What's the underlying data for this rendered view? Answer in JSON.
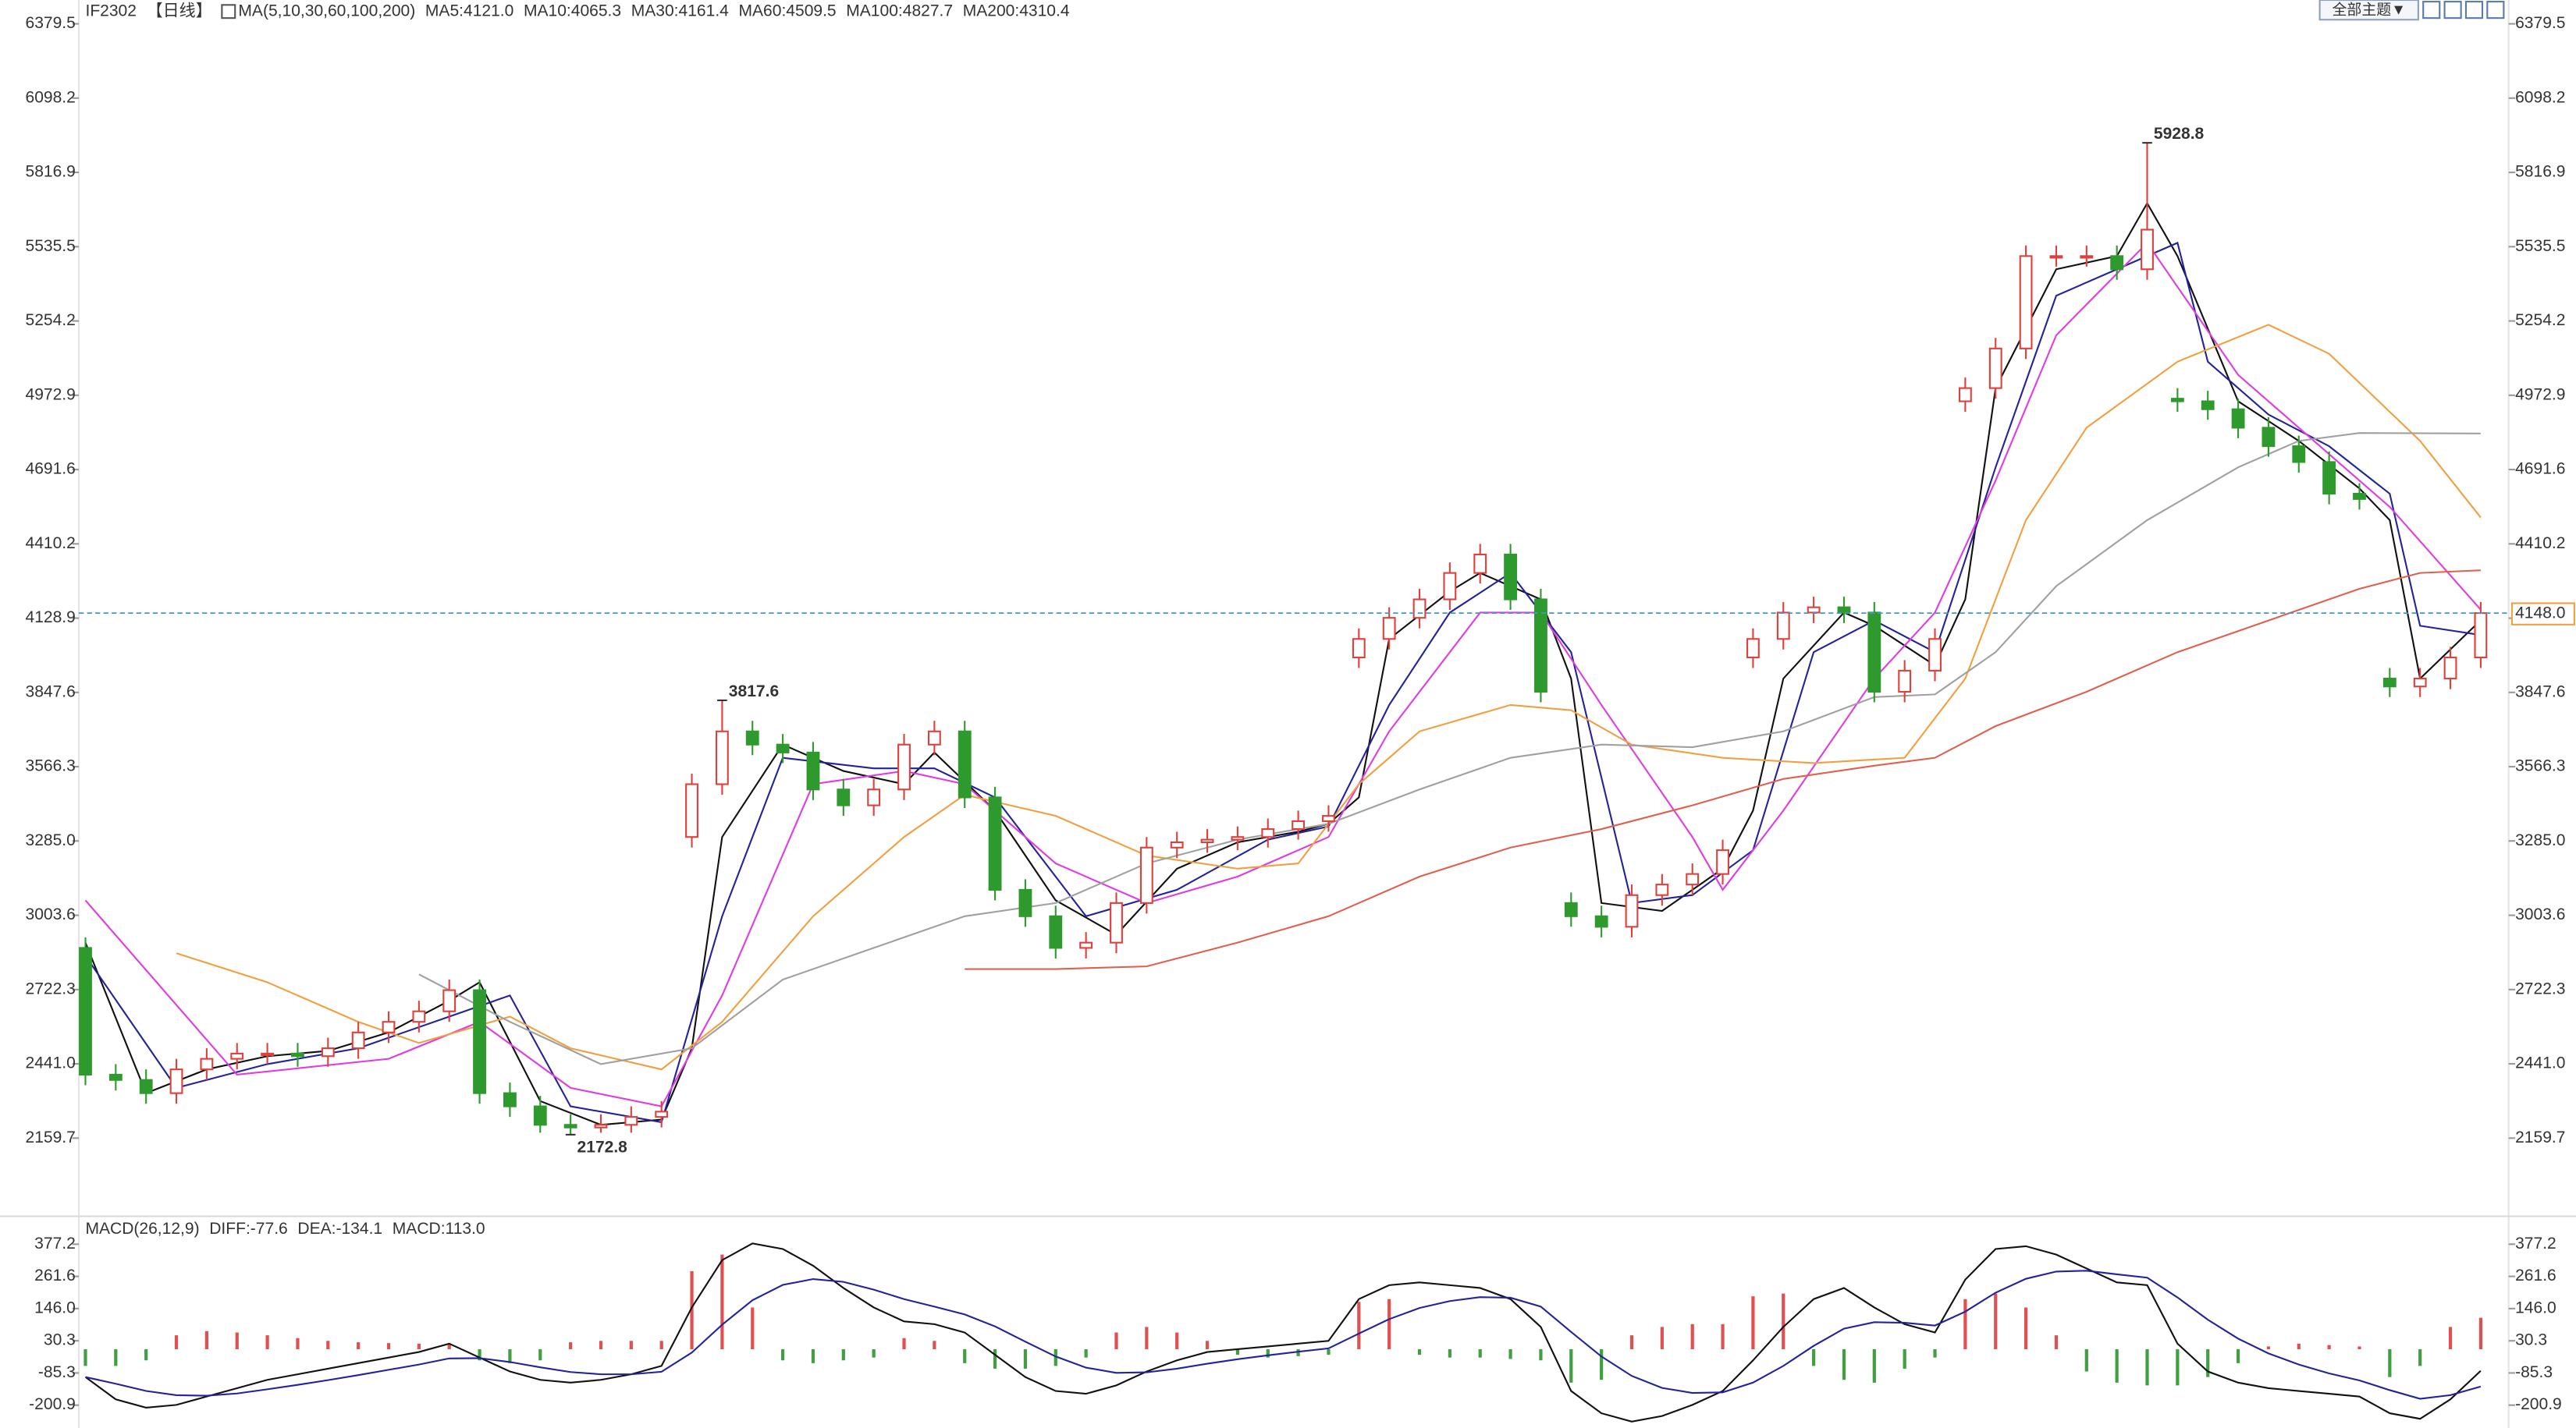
{
  "toolbar": {
    "theme_button": "全部主题▼"
  },
  "chart_data": [
    {
      "type": "candlestick",
      "symbol": "IF2302",
      "period": "【日线】",
      "ma_label": "MA(5,10,30,60,100,200)",
      "up_color": "#e0403c",
      "down_color": "#2e9a2e",
      "ylim": [
        1870,
        6420
      ],
      "yticks": [
        6379.5,
        6098.2,
        5816.9,
        5535.5,
        5254.2,
        4972.9,
        4691.6,
        4410.2,
        4128.9,
        3847.6,
        3566.3,
        {
          "value": 3285,
          "label": "3285.0"
        },
        3003.6,
        2722.3,
        {
          "value": 2441,
          "label": "2441.0"
        },
        2159.7
      ],
      "open": [
        2880,
        2400,
        2380,
        2330,
        2420,
        2460,
        2480,
        2480,
        2470,
        2500,
        2560,
        2600,
        2640,
        2720,
        2330,
        2280,
        2210,
        2200,
        2210,
        2240,
        3300,
        3500,
        3700,
        3650,
        3620,
        3480,
        3420,
        3480,
        3650,
        3700,
        3450,
        3100,
        3000,
        2880,
        2900,
        3050,
        3260,
        3280,
        3290,
        3300,
        3330,
        3360,
        3980,
        4050,
        4130,
        4200,
        4300,
        4370,
        4200,
        3050,
        3000,
        2960,
        3080,
        3120,
        3160,
        3980,
        4050,
        4150,
        4170,
        4150,
        3850,
        3930,
        4950,
        5000,
        5150,
        5500,
        5500,
        5500,
        5450,
        4960,
        4950,
        4920,
        4850,
        4780,
        4720,
        4600,
        3900,
        3870,
        3900,
        3980
      ],
      "high": [
        2920,
        2440,
        2420,
        2460,
        2500,
        2520,
        2520,
        2520,
        2540,
        2600,
        2640,
        2680,
        2760,
        2760,
        2370,
        2320,
        2250,
        2250,
        2280,
        2300,
        3540,
        3817.6,
        3740,
        3690,
        3660,
        3520,
        3520,
        3690,
        3740,
        3740,
        3490,
        3140,
        3040,
        2940,
        3090,
        3300,
        3320,
        3330,
        3340,
        3370,
        3400,
        3420,
        4090,
        4170,
        4240,
        4340,
        4410,
        4410,
        4240,
        3090,
        3040,
        3120,
        3160,
        3200,
        3290,
        4090,
        4190,
        4210,
        4210,
        4190,
        3970,
        4090,
        5040,
        5190,
        5540,
        5540,
        5540,
        5540,
        5928.8,
        5000,
        4990,
        4960,
        4890,
        4820,
        4760,
        4640,
        3940,
        3940,
        4020,
        4190
      ],
      "low": [
        2360,
        2340,
        2290,
        2290,
        2380,
        2420,
        2440,
        2430,
        2430,
        2460,
        2520,
        2560,
        2600,
        2290,
        2240,
        2180,
        2172.8,
        2180,
        2180,
        2200,
        3260,
        3460,
        3610,
        3580,
        3440,
        3380,
        3380,
        3440,
        3610,
        3410,
        3060,
        2960,
        2840,
        2840,
        2860,
        3010,
        3220,
        3240,
        3250,
        3260,
        3290,
        3320,
        3940,
        4010,
        4090,
        4160,
        4260,
        4160,
        3810,
        2960,
        2920,
        2920,
        3040,
        3080,
        3120,
        3940,
        4010,
        4110,
        4110,
        3810,
        3810,
        3890,
        4910,
        4960,
        5110,
        5460,
        5460,
        5410,
        5410,
        4910,
        4880,
        4810,
        4740,
        4680,
        4560,
        4540,
        3830,
        3830,
        3860,
        3940
      ],
      "close": [
        2400,
        2380,
        2330,
        2420,
        2460,
        2480,
        2480,
        2470,
        2500,
        2560,
        2600,
        2640,
        2720,
        2330,
        2280,
        2210,
        2200,
        2210,
        2240,
        2260,
        3500,
        3700,
        3650,
        3620,
        3480,
        3420,
        3480,
        3650,
        3700,
        3450,
        3100,
        3000,
        2880,
        2900,
        3050,
        3260,
        3280,
        3290,
        3300,
        3330,
        3360,
        3380,
        4050,
        4130,
        4200,
        4300,
        4370,
        4200,
        3850,
        3000,
        2960,
        3080,
        3120,
        3160,
        3250,
        4050,
        4150,
        4170,
        4150,
        3850,
        3930,
        4050,
        5000,
        5150,
        5500,
        5500,
        5500,
        5450,
        5600,
        4950,
        4920,
        4850,
        4780,
        4720,
        4600,
        4580,
        3870,
        3900,
        3980,
        4148
      ],
      "annotations": [
        5928.8,
        3817.6,
        2172.8
      ],
      "last_price": {
        "value": 4148,
        "label": "4148.0"
      },
      "last_price_color": "#3c9ad0",
      "series": [
        {
          "name": "MA5:4121.0",
          "color": "#111111",
          "x": [
            0,
            2,
            4,
            6,
            8,
            10,
            12,
            13,
            15,
            17,
            19,
            20,
            21,
            23,
            25,
            27,
            28,
            30,
            32,
            34,
            36,
            38,
            40,
            41,
            42,
            43,
            45,
            46,
            48,
            49,
            50,
            52,
            54,
            55,
            56,
            58,
            59,
            61,
            62,
            63,
            65,
            67,
            68,
            69,
            71,
            73,
            75,
            76,
            77,
            79
          ],
          "values": [
            2900,
            2330,
            2420,
            2470,
            2490,
            2560,
            2680,
            2750,
            2300,
            2210,
            2230,
            2500,
            3300,
            3650,
            3550,
            3500,
            3620,
            3400,
            3060,
            2930,
            3180,
            3280,
            3320,
            3350,
            3450,
            4050,
            4230,
            4300,
            4200,
            3900,
            3050,
            3020,
            3180,
            3400,
            3900,
            4150,
            4100,
            3950,
            4200,
            5000,
            5450,
            5500,
            5700,
            5500,
            4950,
            4800,
            4620,
            4500,
            3900,
            4121
          ]
        },
        {
          "name": "MA10:4065.3",
          "color": "#23239a",
          "x": [
            0,
            3,
            6,
            9,
            12,
            14,
            16,
            19,
            21,
            23,
            26,
            28,
            30,
            33,
            36,
            39,
            41,
            43,
            45,
            47,
            49,
            51,
            53,
            55,
            57,
            59,
            61,
            63,
            65,
            67,
            69,
            70,
            72,
            74,
            76,
            77,
            79
          ],
          "values": [
            2850,
            2350,
            2440,
            2500,
            2620,
            2700,
            2280,
            2220,
            3000,
            3600,
            3560,
            3560,
            3450,
            3000,
            3100,
            3290,
            3340,
            3800,
            4150,
            4300,
            4000,
            3050,
            3080,
            3250,
            4000,
            4120,
            4000,
            4700,
            5350,
            5450,
            5550,
            5100,
            4900,
            4780,
            4600,
            4100,
            4065
          ]
        },
        {
          "name": "MA30:4161.4",
          "color": "#e03ce0",
          "x": [
            0,
            5,
            10,
            13,
            16,
            19,
            21,
            24,
            27,
            29,
            32,
            35,
            38,
            41,
            43,
            46,
            48,
            50,
            53,
            54,
            56,
            59,
            61,
            63,
            65,
            68,
            71,
            74,
            76,
            79
          ],
          "values": [
            3060,
            2400,
            2460,
            2600,
            2350,
            2280,
            2700,
            3500,
            3550,
            3500,
            3200,
            3050,
            3150,
            3300,
            3700,
            4150,
            4150,
            3800,
            3300,
            3100,
            3400,
            3900,
            4150,
            4650,
            5200,
            5550,
            5050,
            4750,
            4550,
            4161
          ]
        },
        {
          "name": "MA60:4509.5",
          "color": "#f0a040",
          "x": [
            3,
            6,
            9,
            11,
            14,
            16,
            19,
            21,
            24,
            27,
            29,
            32,
            35,
            38,
            40,
            42,
            44,
            47,
            49,
            51,
            54,
            57,
            60,
            62,
            64,
            66,
            69,
            72,
            74,
            77,
            79
          ],
          "values": [
            2860,
            2750,
            2600,
            2520,
            2620,
            2500,
            2420,
            2600,
            3000,
            3300,
            3460,
            3380,
            3230,
            3180,
            3200,
            3500,
            3700,
            3800,
            3780,
            3650,
            3600,
            3580,
            3600,
            3900,
            4500,
            4850,
            5100,
            5240,
            5130,
            4800,
            4510
          ]
        },
        {
          "name": "MA100:4827.7",
          "color": "#a0a0a0",
          "x": [
            11,
            14,
            17,
            20,
            23,
            26,
            29,
            32,
            35,
            38,
            41,
            44,
            47,
            50,
            53,
            56,
            59,
            61,
            63,
            65,
            68,
            71,
            73,
            75,
            79
          ],
          "values": [
            2780,
            2600,
            2440,
            2500,
            2760,
            2880,
            3000,
            3050,
            3200,
            3290,
            3350,
            3480,
            3600,
            3650,
            3640,
            3700,
            3830,
            3840,
            4000,
            4250,
            4500,
            4700,
            4800,
            4830,
            4828
          ]
        },
        {
          "name": "MA200:4310.4",
          "color": "#e06050",
          "x": [
            29,
            32,
            35,
            38,
            41,
            44,
            47,
            50,
            53,
            56,
            59,
            61,
            63,
            66,
            69,
            72,
            75,
            77,
            79
          ],
          "values": [
            2800,
            2800,
            2810,
            2900,
            3000,
            3150,
            3260,
            3330,
            3420,
            3520,
            3570,
            3600,
            3720,
            3850,
            4000,
            4120,
            4240,
            4300,
            4310
          ]
        }
      ]
    },
    {
      "type": "macd",
      "title": "MACD(26,12,9)",
      "ylim": [
        -283,
        454
      ],
      "yticks": [
        377.2,
        261.6,
        {
          "value": 146,
          "label": "146.0"
        },
        30.3,
        -85.3,
        -200.9
      ],
      "up_color": "#e05050",
      "down_color": "#40a040",
      "series": [
        {
          "name": "DIFF:-77.6",
          "color": "#111111",
          "values": [
            -100,
            -180,
            -210,
            -200,
            -170,
            -140,
            -110,
            -90,
            -70,
            -50,
            -30,
            -10,
            20,
            -30,
            -80,
            -110,
            -120,
            -110,
            -90,
            -60,
            150,
            320,
            380,
            360,
            300,
            220,
            150,
            100,
            90,
            60,
            -20,
            -100,
            -150,
            -160,
            -130,
            -80,
            -40,
            -10,
            0,
            10,
            20,
            30,
            180,
            230,
            240,
            230,
            220,
            180,
            80,
            -150,
            -230,
            -260,
            -240,
            -200,
            -150,
            -40,
            80,
            180,
            220,
            150,
            90,
            60,
            250,
            360,
            370,
            340,
            290,
            240,
            230,
            20,
            -80,
            -120,
            -140,
            -150,
            -160,
            -170,
            -230,
            -250,
            -180,
            -77.6
          ]
        },
        {
          "name": "DEA:-134.1",
          "color": "#23239a",
          "values": [
            -100,
            -124,
            -150,
            -165,
            -167,
            -159,
            -144,
            -128,
            -111,
            -93,
            -74,
            -55,
            -33,
            -32,
            -46,
            -65,
            -82,
            -90,
            -90,
            -81,
            -12,
            88,
            176,
            231,
            252,
            242,
            214,
            180,
            153,
            125,
            82,
            27,
            -26,
            -66,
            -85,
            -83,
            -70,
            -52,
            -36,
            -22,
            -9,
            3,
            56,
            108,
            148,
            173,
            187,
            185,
            153,
            62,
            -26,
            -96,
            -139,
            -157,
            -155,
            -120,
            -60,
            12,
            74,
            97,
            95,
            85,
            135,
            203,
            253,
            279,
            282,
            269,
            257,
            186,
            106,
            38,
            -15,
            -55,
            -87,
            -112,
            -147,
            -178,
            -165,
            -134.1
          ]
        }
      ],
      "hist": {
        "name": "MACD:113.0",
        "color": "#e03ce0",
        "values": [
          -60,
          -60,
          -40,
          50,
          65,
          60,
          50,
          40,
          30,
          25,
          22,
          20,
          20,
          -40,
          -50,
          -40,
          25,
          30,
          30,
          30,
          280,
          340,
          150,
          -40,
          -50,
          -40,
          -30,
          40,
          30,
          -50,
          -70,
          -70,
          -60,
          -30,
          60,
          80,
          60,
          30,
          -20,
          -30,
          -25,
          -20,
          170,
          180,
          -20,
          -30,
          -30,
          -35,
          -40,
          -120,
          -110,
          50,
          80,
          90,
          90,
          190,
          200,
          -60,
          -110,
          -120,
          -70,
          -30,
          180,
          200,
          150,
          50,
          -80,
          -120,
          -130,
          -130,
          -100,
          -50,
          10,
          20,
          15,
          10,
          -100,
          -60,
          80,
          113
        ]
      }
    }
  ]
}
